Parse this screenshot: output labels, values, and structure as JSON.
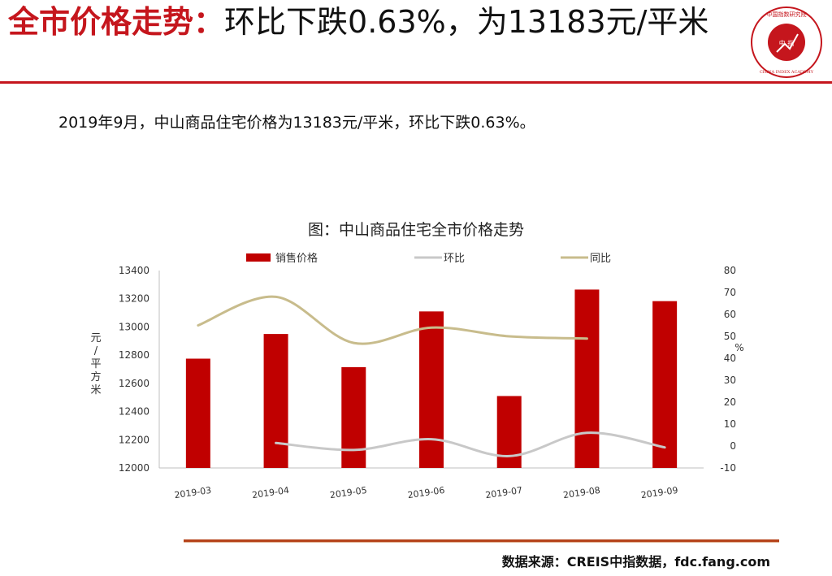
{
  "header": {
    "title_accent": "全市价格走势：",
    "title_rest": "环比下跌0.63%，为13183元/平米",
    "logo_text_top": "中国指数研究院",
    "logo_text_center": "中 指",
    "logo_text_bottom": "CHINA INDEX ACADEMY"
  },
  "subtitle": "2019年9月，中山商品住宅价格为13183元/平米，环比下跌0.63%。",
  "footer": {
    "source": "数据来源：CREIS中指数据，fdc.fang.com"
  },
  "colors": {
    "accent": "#c5161d",
    "bar": "#c00000",
    "mom": "#c8c8c8",
    "yoy": "#c8bc8c"
  },
  "chart_data": {
    "type": "bar",
    "title": "图：中山商品住宅全市价格走势",
    "categories": [
      "2019-03",
      "2019-04",
      "2019-05",
      "2019-06",
      "2019-07",
      "2019-08",
      "2019-09"
    ],
    "series": [
      {
        "name": "销售价格",
        "kind": "bar",
        "axis": "left",
        "values": [
          12775,
          12950,
          12715,
          13110,
          12510,
          13265,
          13183
        ]
      },
      {
        "name": "环比",
        "kind": "line",
        "axis": "right",
        "values": [
          null,
          1.4,
          -1.8,
          3.1,
          -4.6,
          6.0,
          -0.63
        ]
      },
      {
        "name": "同比",
        "kind": "line",
        "axis": "right",
        "values": [
          55,
          68,
          47,
          54,
          50,
          49,
          null
        ]
      }
    ],
    "ylabel": "元/平方米",
    "y2label": "%",
    "ylim": [
      12000,
      13400
    ],
    "y2lim": [
      -10,
      80
    ],
    "yticks": [
      12000,
      12200,
      12400,
      12600,
      12800,
      13000,
      13200,
      13400
    ],
    "y2ticks": [
      -10,
      0,
      10,
      20,
      30,
      40,
      50,
      60,
      70,
      80
    ],
    "grid": false,
    "legend_position": "top"
  }
}
